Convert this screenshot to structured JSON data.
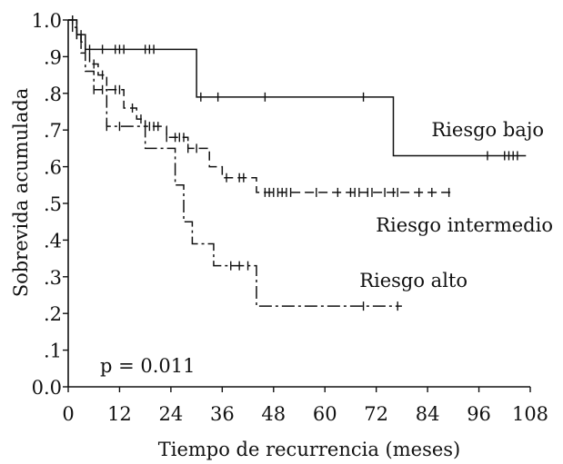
{
  "chart_data": {
    "type": "line",
    "subtype": "kaplan-meier survival curves",
    "xlabel": "Tiempo de recurrencia (meses)",
    "ylabel": "Sobrevida acumulada",
    "xlim": [
      0,
      108
    ],
    "ylim": [
      0,
      1.0
    ],
    "x_ticks": [
      0,
      12,
      24,
      36,
      48,
      60,
      72,
      84,
      96,
      108
    ],
    "x_tick_labels": [
      "0",
      "12",
      "24",
      "36",
      "48",
      "60",
      "72",
      "84",
      "96",
      "108"
    ],
    "y_ticks": [
      0,
      0.1,
      0.2,
      0.3,
      0.4,
      0.5,
      0.6,
      0.7,
      0.8,
      0.9,
      1.0
    ],
    "y_tick_labels": [
      "0.0",
      ".1",
      ".2",
      ".3",
      ".4",
      ".5",
      ".6",
      ".7",
      ".8",
      ".9",
      "1.0"
    ],
    "grid": false,
    "annotation": "p = 0.011",
    "series": [
      {
        "name": "Riesgo bajo",
        "line_style": "solid",
        "steps": [
          [
            0,
            1.0
          ],
          [
            2,
            0.96
          ],
          [
            4,
            0.92
          ],
          [
            30,
            0.79
          ],
          [
            76,
            0.63
          ],
          [
            107,
            0.63
          ]
        ],
        "censored": [
          1,
          2,
          3,
          4,
          5,
          8,
          11,
          12,
          13,
          18,
          19,
          20,
          31,
          35,
          46,
          69,
          98,
          102,
          103,
          104,
          105
        ]
      },
      {
        "name": "Riesgo intermedio",
        "line_style": "dashed",
        "steps": [
          [
            0,
            1.0
          ],
          [
            1,
            0.98
          ],
          [
            2,
            0.96
          ],
          [
            3,
            0.94
          ],
          [
            4,
            0.91
          ],
          [
            5,
            0.88
          ],
          [
            7,
            0.85
          ],
          [
            9,
            0.81
          ],
          [
            13,
            0.76
          ],
          [
            16,
            0.73
          ],
          [
            18,
            0.71
          ],
          [
            23,
            0.68
          ],
          [
            28,
            0.65
          ],
          [
            33,
            0.6
          ],
          [
            36,
            0.57
          ],
          [
            44,
            0.53
          ],
          [
            90,
            0.53
          ]
        ],
        "censored": [
          1,
          3,
          6,
          8,
          11,
          12,
          15,
          17,
          19,
          20,
          21,
          23,
          25,
          26,
          27,
          28,
          30,
          37,
          40,
          41,
          46,
          47,
          48,
          49,
          50,
          51,
          52,
          58,
          63,
          66,
          67,
          68,
          70,
          71,
          74,
          76,
          77,
          82,
          85,
          89
        ]
      },
      {
        "name": "Riesgo alto",
        "line_style": "dash-dot",
        "steps": [
          [
            0,
            1.0
          ],
          [
            2,
            0.96
          ],
          [
            3,
            0.91
          ],
          [
            4,
            0.86
          ],
          [
            6,
            0.81
          ],
          [
            9,
            0.71
          ],
          [
            18,
            0.65
          ],
          [
            25,
            0.55
          ],
          [
            27,
            0.45
          ],
          [
            29,
            0.39
          ],
          [
            34,
            0.33
          ],
          [
            44,
            0.22
          ],
          [
            78,
            0.22
          ]
        ],
        "censored": [
          1,
          2,
          6,
          8,
          9,
          12,
          38,
          40,
          42,
          69,
          77
        ]
      }
    ],
    "series_label_positions": [
      "upper-right",
      "middle-right",
      "lower-middle"
    ]
  }
}
